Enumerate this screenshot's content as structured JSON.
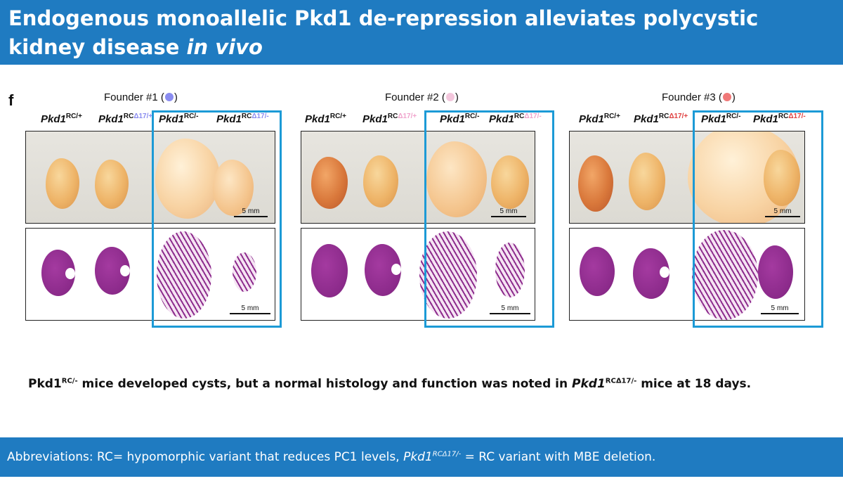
{
  "header": {
    "title_main": "Endogenous monoallelic Pkd1 de-repression alleviates polycystic kidney disease",
    "title_italic": "in vivo"
  },
  "figure": {
    "panel_letter": "f",
    "founders": [
      {
        "label_prefix": "Founder #1 (",
        "label_suffix": ")",
        "dot_color": "#8a8cf0",
        "delta_color": "#8a8cf0"
      },
      {
        "label_prefix": "Founder #2 (",
        "label_suffix": ")",
        "dot_color": "#f3c6dc",
        "delta_color": "#f0a3cc"
      },
      {
        "label_prefix": "Founder #3 (",
        "label_suffix": ")",
        "dot_color": "#f07878",
        "delta_color": "#e04040"
      }
    ],
    "genotypes": {
      "base": "Pkd1",
      "g1_sup": "RC/+",
      "g2_sup_a": "RC",
      "g2_delta": "Δ17/+",
      "g3_sup": "RC/-",
      "g4_sup_a": "RC",
      "g4_delta": "Δ17/-"
    },
    "scale_bar_label": "5 mm"
  },
  "caption": {
    "part1": "Pkd1",
    "part1_sup": "RC/-",
    "part2": " mice developed cysts, but a normal histology and function was noted in ",
    "part3_ital": "Pkd1",
    "part3_sup": "RCΔ17/-",
    "part4": " mice at 18 days."
  },
  "footer": {
    "part1": "Abbreviations: RC= hypomorphic variant that reduces PC1 levels, ",
    "part2_ital": "Pkd1",
    "part2_sup": "RCΔ17/-",
    "part3": " = RC variant with MBE deletion."
  }
}
